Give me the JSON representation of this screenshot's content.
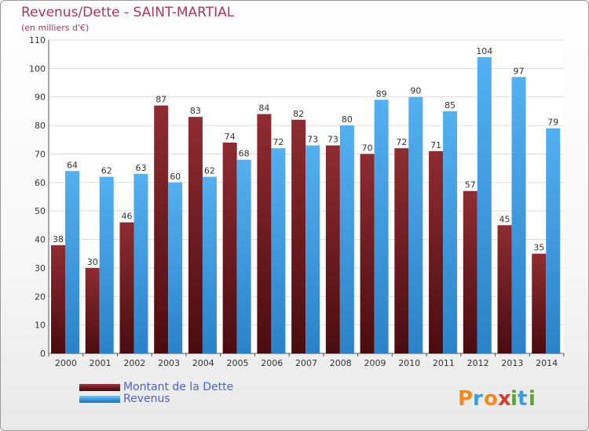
{
  "chart_data": {
    "type": "bar",
    "title": "Revenus/Dette - SAINT-MARTIAL",
    "subtitle": "(en milliers d'€)",
    "categories": [
      "2000",
      "2001",
      "2002",
      "2003",
      "2004",
      "2005",
      "2006",
      "2007",
      "2008",
      "2009",
      "2010",
      "2011",
      "2012",
      "2013",
      "2014"
    ],
    "series": [
      {
        "name": "Montant de la Dette",
        "color": "#7a1f24",
        "values": [
          38,
          30,
          46,
          87,
          83,
          74,
          84,
          82,
          73,
          70,
          72,
          71,
          57,
          45,
          35
        ]
      },
      {
        "name": "Revenus",
        "color": "#3a9be0",
        "values": [
          64,
          62,
          63,
          60,
          62,
          68,
          72,
          73,
          80,
          89,
          90,
          85,
          104,
          97,
          79
        ]
      }
    ],
    "ylim": [
      0,
      110
    ],
    "yticks": [
      0,
      10,
      20,
      30,
      40,
      50,
      60,
      70,
      80,
      90,
      100,
      110
    ],
    "grid": true,
    "legend": "bottom-left"
  },
  "legend": {
    "items": [
      {
        "label": "Montant de la Dette",
        "color": "#6b1c21"
      },
      {
        "label": "Revenus",
        "color": "#3a9be0"
      }
    ]
  },
  "logo": {
    "text": "Proxiti"
  }
}
